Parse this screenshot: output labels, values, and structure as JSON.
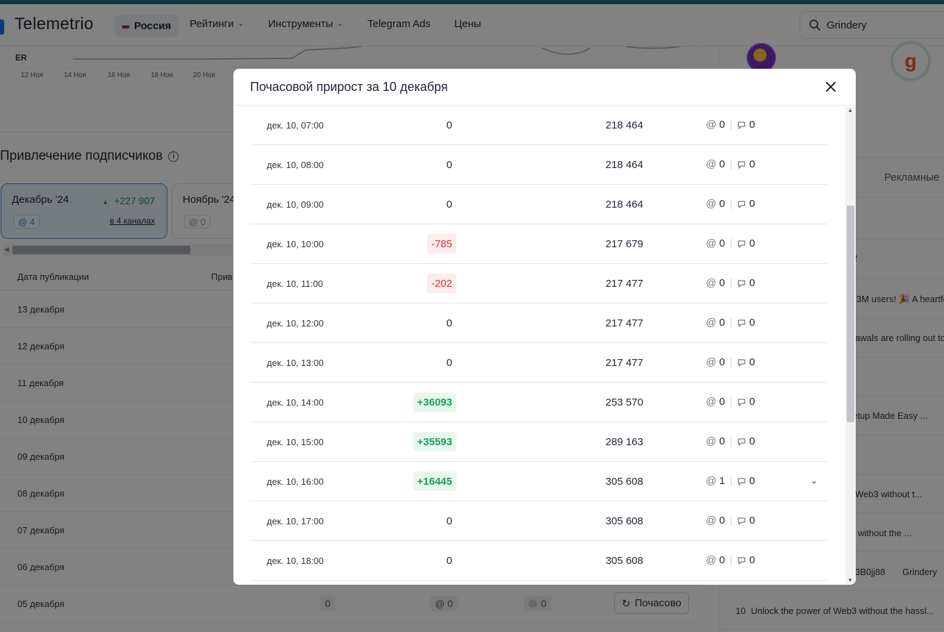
{
  "header": {
    "logo": "Telemetrio",
    "country": "Россия",
    "nav": [
      "Рейтинги",
      "Инструменты",
      "Telegram Ads",
      "Цены"
    ],
    "search_value": "Grindery"
  },
  "chart": {
    "metric_label": "ER",
    "x_ticks": [
      "12 Ноя",
      "14 Ноя",
      "16 Ноя",
      "18 Ноя",
      "20 Ноя"
    ]
  },
  "subscribers": {
    "title": "Привлечение подписчиков",
    "active_month": {
      "label": "Декабрь '24",
      "growth": "+227 907",
      "mentions": "@ 4",
      "channels_link": "в 4 каналах"
    },
    "other_month": {
      "label": "Ноябрь '24",
      "mentions": "@ 0"
    },
    "table_headers": [
      "Дата публикации",
      "Прив"
    ],
    "dates": [
      "13 декабря",
      "12 декабря",
      "11 декабря",
      "10 декабря",
      "09 декабря",
      "08 декабря",
      "07 декабря",
      "06 декабря",
      "05 декабря"
    ],
    "last_row": {
      "growth": "0",
      "mentions": "@ 0",
      "reposts": "0",
      "hourly_button": "Почасово"
    }
  },
  "right_panel": {
    "tab": "Рекламные",
    "snippets": [
      "2",
      "3M users! 🎉 A heartfe",
      "awals are rolling out to",
      "etup Made Easy ...",
      "Web3 without t...",
      " without the ...",
      "3B0jj88",
      "Grindery",
      "Unlock the power of Web3 without the hassl..."
    ],
    "last_num": "10"
  },
  "modal": {
    "title": "Почасовой прирост за 10 декабря",
    "rows": [
      {
        "time": "дек. 10, 07:00",
        "delta": "0",
        "type": "zero",
        "total": "218 464",
        "mentions": "0",
        "reposts": "0"
      },
      {
        "time": "дек. 10, 08:00",
        "delta": "0",
        "type": "zero",
        "total": "218 464",
        "mentions": "0",
        "reposts": "0"
      },
      {
        "time": "дек. 10, 09:00",
        "delta": "0",
        "type": "zero",
        "total": "218 464",
        "mentions": "0",
        "reposts": "0"
      },
      {
        "time": "дек. 10, 10:00",
        "delta": "-785",
        "type": "neg",
        "total": "217 679",
        "mentions": "0",
        "reposts": "0"
      },
      {
        "time": "дек. 10, 11:00",
        "delta": "-202",
        "type": "neg",
        "total": "217 477",
        "mentions": "0",
        "reposts": "0"
      },
      {
        "time": "дек. 10, 12:00",
        "delta": "0",
        "type": "zero",
        "total": "217 477",
        "mentions": "0",
        "reposts": "0"
      },
      {
        "time": "дек. 10, 13:00",
        "delta": "0",
        "type": "zero",
        "total": "217 477",
        "mentions": "0",
        "reposts": "0"
      },
      {
        "time": "дек. 10, 14:00",
        "delta": "+36093",
        "type": "pos",
        "total": "253 570",
        "mentions": "0",
        "reposts": "0"
      },
      {
        "time": "дек. 10, 15:00",
        "delta": "+35593",
        "type": "pos",
        "total": "289 163",
        "mentions": "0",
        "reposts": "0"
      },
      {
        "time": "дек. 10, 16:00",
        "delta": "+16445",
        "type": "pos",
        "total": "305 608",
        "mentions": "1",
        "reposts": "0",
        "expandable": true
      },
      {
        "time": "дек. 10, 17:00",
        "delta": "0",
        "type": "zero",
        "total": "305 608",
        "mentions": "0",
        "reposts": "0"
      },
      {
        "time": "дек. 10, 18:00",
        "delta": "0",
        "type": "zero",
        "total": "305 608",
        "mentions": "0",
        "reposts": "0"
      }
    ]
  }
}
